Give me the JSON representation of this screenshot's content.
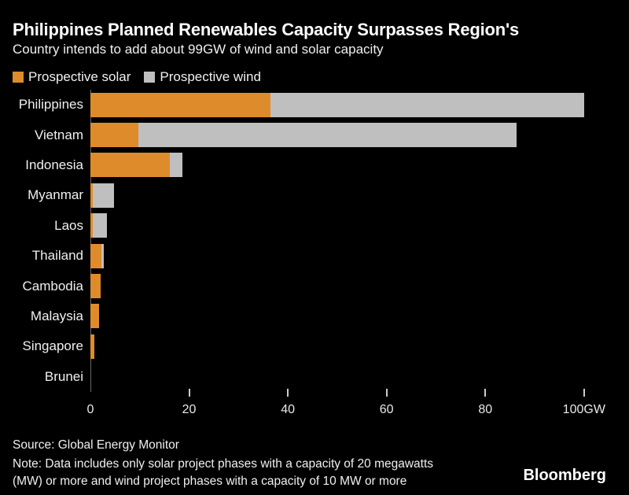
{
  "header": {
    "title": "Philippines Planned Renewables Capacity Surpasses Region's",
    "subtitle": "Country intends to add about 99GW of wind and solar capacity"
  },
  "legend": [
    {
      "label": "Prospective solar",
      "color": "#DE8C2B"
    },
    {
      "label": "Prospective wind",
      "color": "#BFBFBF"
    }
  ],
  "chart_data": {
    "type": "bar",
    "orientation": "horizontal",
    "stacked": true,
    "title": "Philippines Planned Renewables Capacity Surpasses Region's",
    "subtitle": "Country intends to add about 99GW of wind and solar capacity",
    "xlabel": "",
    "ylabel": "",
    "unit": "GW",
    "xlim": [
      0,
      107
    ],
    "grid": false,
    "legend_position": "top",
    "categories": [
      "Philippines",
      "Vietnam",
      "Indonesia",
      "Myanmar",
      "Laos",
      "Thailand",
      "Cambodia",
      "Malaysia",
      "Singapore",
      "Brunei"
    ],
    "series": [
      {
        "name": "Prospective solar",
        "color": "#DE8C2B",
        "values": [
          36.5,
          9.7,
          16.1,
          0.4,
          0.4,
          2.2,
          2.0,
          1.8,
          0.8,
          0
        ]
      },
      {
        "name": "Prospective wind",
        "color": "#BFBFBF",
        "values": [
          63.5,
          76.6,
          2.6,
          4.4,
          2.9,
          0.5,
          0,
          0,
          0,
          0
        ]
      }
    ],
    "x_ticks": [
      {
        "value": 0,
        "label": "0"
      },
      {
        "value": 20,
        "label": "20"
      },
      {
        "value": 40,
        "label": "40"
      },
      {
        "value": 60,
        "label": "60"
      },
      {
        "value": 80,
        "label": "80"
      },
      {
        "value": 100,
        "label": "100GW"
      }
    ]
  },
  "footer": {
    "source": "Source: Global Energy Monitor",
    "note_line1": "Note: Data includes only solar project phases with a capacity of 20 megawatts",
    "note_line2": "(MW) or more and wind project phases with a capacity of 10 MW or more",
    "brand": "Bloomberg"
  }
}
